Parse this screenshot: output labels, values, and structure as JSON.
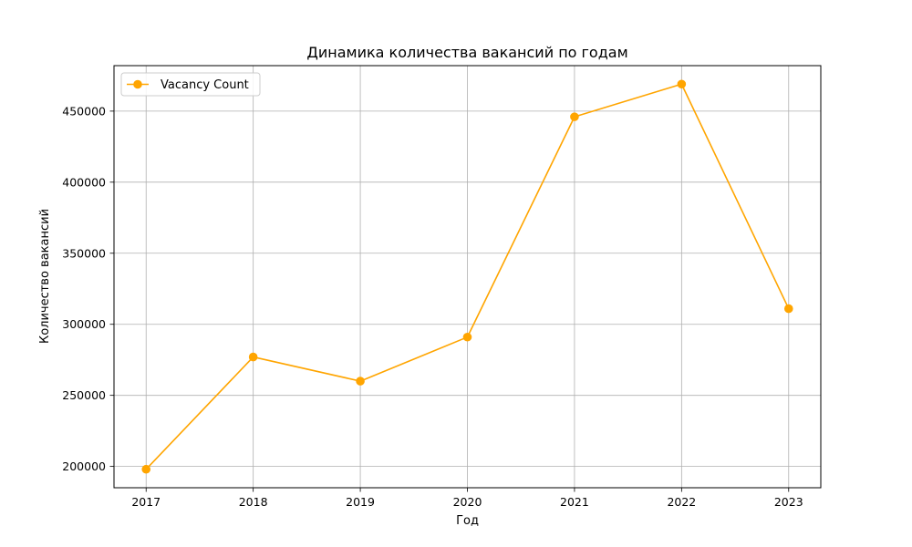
{
  "chart_data": {
    "type": "line",
    "title": "Динамика количества вакансий по годам",
    "xlabel": "Год",
    "ylabel": "Количество вакансий",
    "x": [
      2017,
      2018,
      2019,
      2020,
      2021,
      2022,
      2023
    ],
    "x_tick_labels": [
      "2017",
      "2018",
      "2019",
      "2020",
      "2021",
      "2022",
      "2023"
    ],
    "y_ticks": [
      200000,
      250000,
      300000,
      350000,
      400000,
      450000
    ],
    "y_tick_labels": [
      "200000",
      "250000",
      "300000",
      "350000",
      "400000",
      "450000"
    ],
    "ylim": [
      185000,
      482000
    ],
    "xlim": [
      2016.7,
      2023.3
    ],
    "grid": true,
    "legend_position": "top-left",
    "series": [
      {
        "name": "Vacancy Count",
        "color": "#ffa500",
        "marker": "circle",
        "values": [
          198000,
          277000,
          260000,
          291000,
          446000,
          469000,
          311000
        ]
      }
    ]
  }
}
